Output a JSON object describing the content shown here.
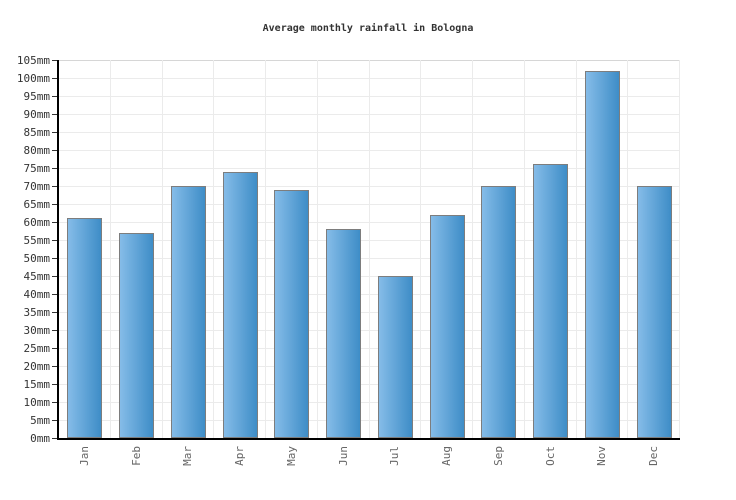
{
  "title": "Average monthly rainfall in Bologna",
  "chart_data": {
    "type": "bar",
    "title": "Average monthly rainfall in Bologna",
    "categories": [
      "Jan",
      "Feb",
      "Mar",
      "Apr",
      "May",
      "Jun",
      "Jul",
      "Aug",
      "Sep",
      "Oct",
      "Nov",
      "Dec"
    ],
    "values": [
      61,
      57,
      70,
      74,
      69,
      58,
      45,
      62,
      70,
      76,
      102,
      70
    ],
    "unit": "mm",
    "xlabel": "",
    "ylabel": "",
    "ylim": [
      0,
      105
    ],
    "ytick_step": 5,
    "ytick_suffix": "mm",
    "grid": true,
    "legend": false,
    "colors": {
      "bar_gradient_left": "#85bce8",
      "bar_gradient_right": "#3e8dc7",
      "bar_border": "#7d7d7d",
      "gridline": "#ebebeb",
      "axis": "#000000",
      "title_text": "#333333",
      "ytick_text": "#333333",
      "xtick_text": "#666666",
      "background": "#ffffff"
    }
  }
}
